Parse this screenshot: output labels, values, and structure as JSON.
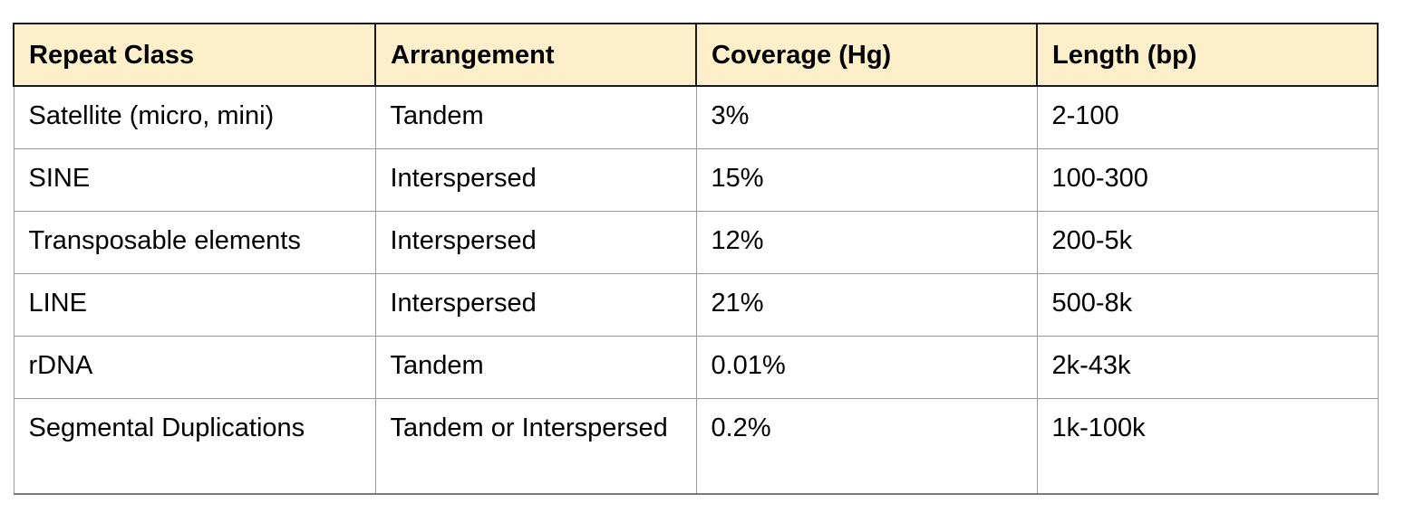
{
  "table": {
    "headers": [
      "Repeat Class",
      "Arrangement",
      "Coverage (Hg)",
      "Length (bp)"
    ],
    "rows": [
      [
        "Satellite (micro, mini)",
        "Tandem",
        "3%",
        "2-100"
      ],
      [
        "SINE",
        "Interspersed",
        "15%",
        "100-300"
      ],
      [
        "Transposable elements",
        "Interspersed",
        "12%",
        "200-5k"
      ],
      [
        "LINE",
        "Interspersed",
        "21%",
        "500-8k"
      ],
      [
        "rDNA",
        "Tandem",
        "0.01%",
        "2k-43k"
      ],
      [
        "Segmental Duplications",
        "Tandem or Interspersed",
        "0.2%",
        "1k-100k"
      ]
    ]
  },
  "colors": {
    "header_background": "#fdefc9",
    "border": "#9a9a9a"
  }
}
